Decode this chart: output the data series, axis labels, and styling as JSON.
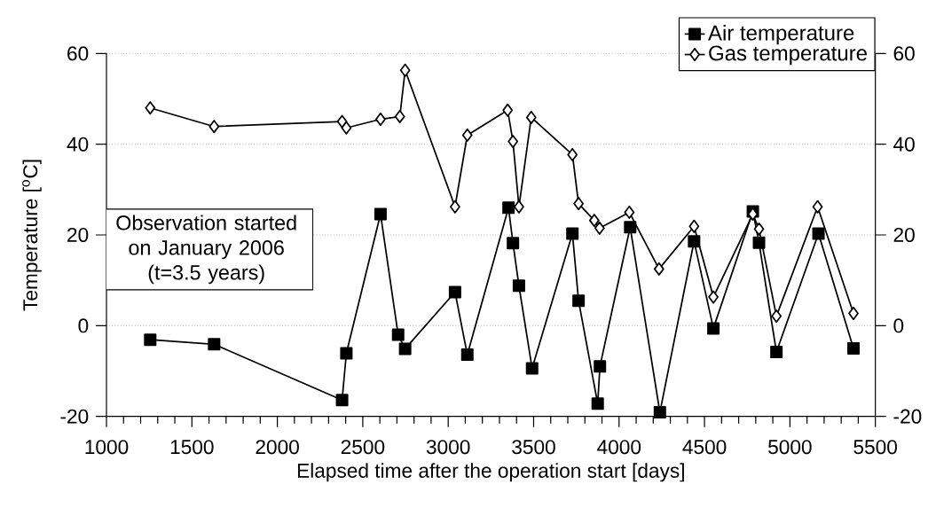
{
  "chart_data": {
    "type": "line",
    "xlabel": "Elapsed time after the operation start [days]",
    "ylabel": "Temperature [$^{o}$C]",
    "xlim": [
      1000,
      5500
    ],
    "xticks": [
      1000,
      {
        "value": 1100,
        "label": null
      },
      {
        "value": 1200,
        "label": null
      },
      {
        "value": 1300,
        "label": null
      },
      {
        "value": 1400,
        "label": null
      },
      1500,
      {
        "value": 1600,
        "label": null
      },
      {
        "value": 1700,
        "label": null
      },
      {
        "value": 1800,
        "label": null
      },
      {
        "value": 1900,
        "label": null
      },
      2000,
      {
        "value": 2100,
        "label": null
      },
      {
        "value": 2200,
        "label": null
      },
      {
        "value": 2300,
        "label": null
      },
      {
        "value": 2400,
        "label": null
      },
      2500,
      {
        "value": 2600,
        "label": null
      },
      {
        "value": 2700,
        "label": null
      },
      {
        "value": 2800,
        "label": null
      },
      {
        "value": 2900,
        "label": null
      },
      3000,
      {
        "value": 3100,
        "label": null
      },
      {
        "value": 3200,
        "label": null
      },
      {
        "value": 3300,
        "label": null
      },
      {
        "value": 3400,
        "label": null
      },
      3500,
      {
        "value": 3600,
        "label": null
      },
      {
        "value": 3700,
        "label": null
      },
      {
        "value": 3800,
        "label": null
      },
      {
        "value": 3900,
        "label": null
      },
      4000,
      {
        "value": 4100,
        "label": null
      },
      {
        "value": 4200,
        "label": null
      },
      {
        "value": 4300,
        "label": null
      },
      {
        "value": 4400,
        "label": null
      },
      4500,
      {
        "value": 4600,
        "label": null
      },
      {
        "value": 4700,
        "label": null
      },
      {
        "value": 4800,
        "label": null
      },
      {
        "value": 4900,
        "label": null
      },
      5000,
      {
        "value": 5100,
        "label": null
      },
      {
        "value": 5200,
        "label": null
      },
      {
        "value": 5300,
        "label": null
      },
      {
        "value": 5400,
        "label": null
      },
      5500
    ],
    "ylim": [
      -20,
      60
    ],
    "yticks": [
      -20,
      0,
      20,
      40,
      60
    ],
    "y2lim": [
      -20,
      60
    ],
    "y2ticks": [
      -20,
      0,
      20,
      40,
      60
    ],
    "grid": "y",
    "legend": "top right",
    "annotations": [
      "Observation started on January 2006 (t=3.5 years)"
    ],
    "series": [
      {
        "name": "Air temperature",
        "color": "#000000",
        "marker": "square",
        "x": [
          1256,
          1630,
          2379,
          2404,
          2604,
          2707,
          2748,
          3040,
          3112,
          3353,
          3379,
          3414,
          3491,
          3727,
          3763,
          3875,
          3888,
          4065,
          4239,
          4439,
          4552,
          4783,
          4819,
          4921,
          5167,
          5372
        ],
        "values": [
          -3.1,
          -4.1,
          -16.4,
          -6.1,
          24.6,
          -2.0,
          -5.1,
          7.4,
          -6.4,
          26.0,
          18.2,
          8.8,
          -9.4,
          20.3,
          5.5,
          -17.2,
          -9.0,
          21.7,
          -19.1,
          18.6,
          -0.6,
          25.2,
          18.3,
          -5.8,
          20.3,
          -5.0
        ]
      },
      {
        "name": "Gas temperature",
        "color": "#000000",
        "marker": "diamond",
        "x": [
          1256,
          1630,
          2379,
          2404,
          2604,
          2717,
          2748,
          3040,
          3112,
          3348,
          3379,
          3414,
          3486,
          3727,
          3763,
          3855,
          3886,
          4060,
          4234,
          4439,
          4552,
          4783,
          4819,
          4921,
          5162,
          5372
        ],
        "values": [
          48.0,
          43.9,
          45.0,
          43.6,
          45.5,
          46.1,
          56.3,
          26.2,
          42.0,
          47.5,
          40.6,
          26.2,
          45.9,
          37.7,
          26.9,
          23.2,
          21.5,
          25.0,
          12.5,
          21.9,
          6.3,
          24.6,
          21.3,
          2.1,
          26.2,
          2.7
        ]
      }
    ]
  }
}
